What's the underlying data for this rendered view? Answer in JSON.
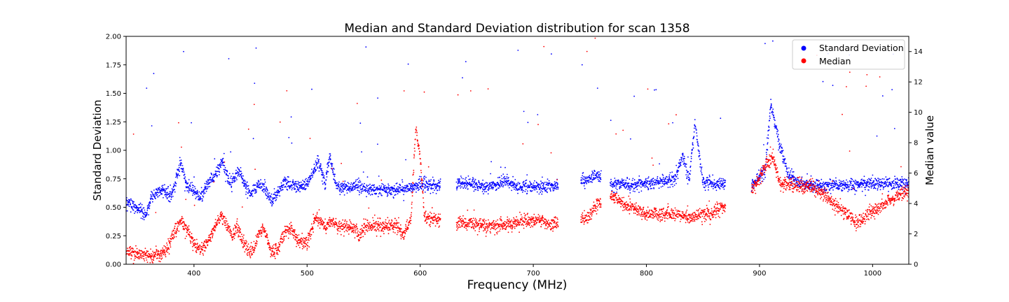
{
  "chart_data": {
    "type": "scatter",
    "title": "Median and Standard Deviation distribution for scan 1358",
    "xlabel": "Frequency (MHz)",
    "ylabel_left": "Standard Deviation",
    "ylabel_right": "Median value",
    "xlim": [
      340,
      1032
    ],
    "ylim_left": [
      0,
      2.0
    ],
    "ylim_right": [
      0,
      15
    ],
    "x_ticks": [
      400,
      500,
      600,
      700,
      800,
      900,
      1000
    ],
    "y_ticks_left": [
      "0.00",
      "0.25",
      "0.50",
      "0.75",
      "1.00",
      "1.25",
      "1.50",
      "1.75",
      "2.00"
    ],
    "y_ticks_right": [
      0,
      2,
      4,
      6,
      8,
      10,
      12,
      14
    ],
    "grid": false,
    "legend_position": "top-right",
    "series": [
      {
        "name": "Standard Deviation",
        "axis": "left",
        "color": "#0000ff",
        "profile": [
          [
            340,
            0.55
          ],
          [
            350,
            0.5
          ],
          [
            358,
            0.42
          ],
          [
            362,
            0.6
          ],
          [
            372,
            0.65
          ],
          [
            380,
            0.6
          ],
          [
            388,
            0.9
          ],
          [
            394,
            0.68
          ],
          [
            400,
            0.65
          ],
          [
            405,
            0.58
          ],
          [
            412,
            0.7
          ],
          [
            418,
            0.78
          ],
          [
            425,
            0.9
          ],
          [
            432,
            0.7
          ],
          [
            440,
            0.82
          ],
          [
            445,
            0.7
          ],
          [
            450,
            0.6
          ],
          [
            456,
            0.7
          ],
          [
            462,
            0.68
          ],
          [
            468,
            0.55
          ],
          [
            474,
            0.62
          ],
          [
            480,
            0.72
          ],
          [
            490,
            0.68
          ],
          [
            500,
            0.7
          ],
          [
            510,
            0.92
          ],
          [
            516,
            0.7
          ],
          [
            520,
            0.95
          ],
          [
            526,
            0.68
          ],
          [
            535,
            0.67
          ],
          [
            545,
            0.68
          ],
          [
            552,
            0.66
          ],
          [
            565,
            0.65
          ],
          [
            580,
            0.66
          ],
          [
            590,
            0.66
          ],
          [
            600,
            0.7
          ],
          [
            610,
            0.69
          ],
          [
            618,
            0.7
          ],
          [
            640,
            0.72
          ],
          [
            660,
            0.68
          ],
          [
            675,
            0.72
          ],
          [
            690,
            0.68
          ],
          [
            705,
            0.68
          ],
          [
            713,
            0.69
          ],
          [
            720,
            0.68
          ],
          [
            730,
            0.68
          ],
          [
            757,
            0.78
          ],
          [
            770,
            0.7
          ],
          [
            790,
            0.7
          ],
          [
            810,
            0.72
          ],
          [
            825,
            0.74
          ],
          [
            832,
            0.95
          ],
          [
            838,
            0.75
          ],
          [
            843,
            1.25
          ],
          [
            850,
            0.72
          ],
          [
            870,
            0.7
          ],
          [
            895,
            0.7
          ],
          [
            905,
            0.82
          ],
          [
            910,
            1.4
          ],
          [
            918,
            1.05
          ],
          [
            925,
            0.8
          ],
          [
            935,
            0.7
          ],
          [
            960,
            0.69
          ],
          [
            1000,
            0.71
          ],
          [
            1030,
            0.7
          ]
        ],
        "segments": [
          [
            340,
            618
          ],
          [
            632,
            722
          ],
          [
            742,
            760
          ],
          [
            768,
            870
          ],
          [
            893,
            1032
          ]
        ]
      },
      {
        "name": "Median",
        "axis": "right",
        "color": "#ff0000",
        "profile": [
          [
            340,
            0.9
          ],
          [
            355,
            0.6
          ],
          [
            365,
            0.6
          ],
          [
            375,
            0.8
          ],
          [
            383,
            2.2
          ],
          [
            388,
            2.8
          ],
          [
            395,
            2.2
          ],
          [
            400,
            1.3
          ],
          [
            406,
            0.9
          ],
          [
            412,
            1.4
          ],
          [
            418,
            2.4
          ],
          [
            424,
            3.3
          ],
          [
            430,
            2.4
          ],
          [
            434,
            1.8
          ],
          [
            438,
            2.5
          ],
          [
            442,
            1.7
          ],
          [
            447,
            0.9
          ],
          [
            452,
            0.8
          ],
          [
            458,
            2.2
          ],
          [
            462,
            2.4
          ],
          [
            468,
            0.8
          ],
          [
            474,
            1.0
          ],
          [
            480,
            2.0
          ],
          [
            486,
            2.4
          ],
          [
            492,
            1.5
          ],
          [
            500,
            1.4
          ],
          [
            508,
            3.2
          ],
          [
            515,
            2.5
          ],
          [
            522,
            2.8
          ],
          [
            530,
            2.4
          ],
          [
            540,
            2.5
          ],
          [
            547,
            2.0
          ],
          [
            555,
            2.7
          ],
          [
            565,
            2.5
          ],
          [
            578,
            2.6
          ],
          [
            586,
            2.0
          ],
          [
            592,
            3.0
          ],
          [
            596,
            9.0
          ],
          [
            600,
            7.0
          ],
          [
            604,
            3.0
          ],
          [
            618,
            3.0
          ],
          [
            640,
            2.7
          ],
          [
            660,
            2.5
          ],
          [
            680,
            2.6
          ],
          [
            695,
            2.9
          ],
          [
            705,
            2.9
          ],
          [
            714,
            2.6
          ],
          [
            722,
            2.7
          ],
          [
            730,
            3.2
          ],
          [
            748,
            3.0
          ],
          [
            757,
            4.0
          ],
          [
            770,
            4.4
          ],
          [
            780,
            4.0
          ],
          [
            800,
            3.3
          ],
          [
            820,
            3.3
          ],
          [
            840,
            3.1
          ],
          [
            860,
            3.5
          ],
          [
            870,
            3.8
          ],
          [
            893,
            5.0
          ],
          [
            900,
            5.6
          ],
          [
            906,
            6.6
          ],
          [
            912,
            7.0
          ],
          [
            918,
            5.3
          ],
          [
            930,
            5.2
          ],
          [
            945,
            5.1
          ],
          [
            958,
            4.6
          ],
          [
            970,
            3.7
          ],
          [
            980,
            3.2
          ],
          [
            985,
            2.7
          ],
          [
            990,
            2.9
          ],
          [
            1000,
            3.5
          ],
          [
            1015,
            4.2
          ],
          [
            1025,
            4.6
          ],
          [
            1030,
            4.8
          ]
        ],
        "segments": [
          [
            340,
            618
          ],
          [
            632,
            722
          ],
          [
            742,
            760
          ],
          [
            768,
            870
          ],
          [
            893,
            1032
          ]
        ]
      }
    ]
  }
}
